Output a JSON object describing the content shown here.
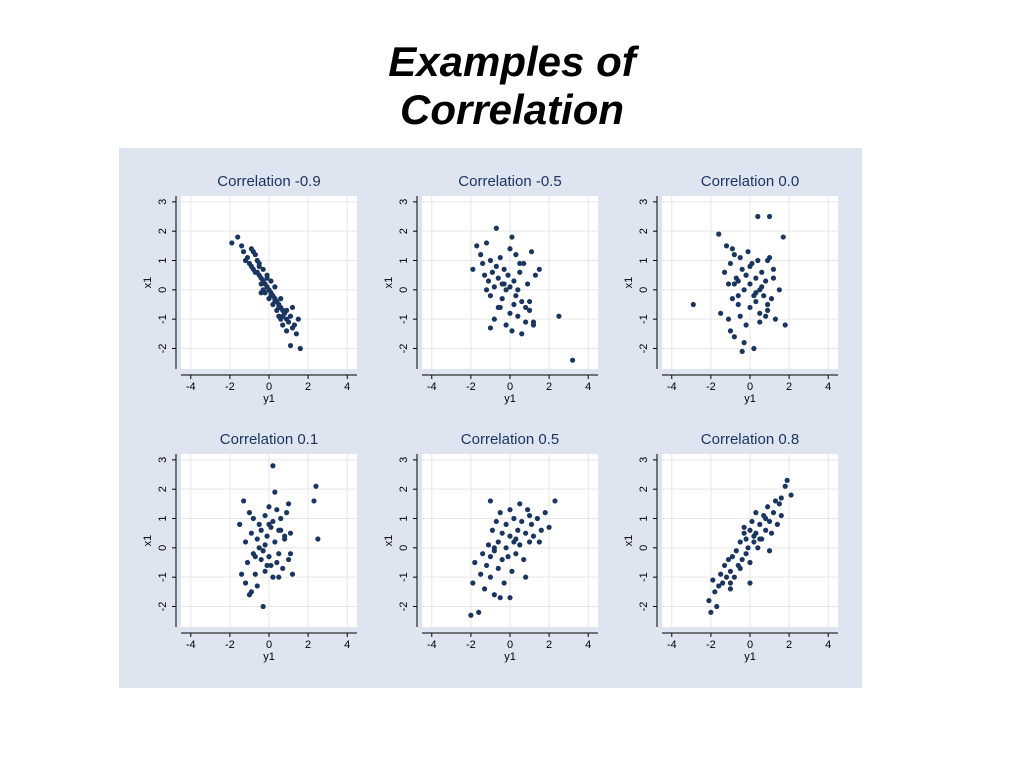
{
  "slide": {
    "title_line1": "Examples of",
    "title_line2": "Correlation"
  },
  "colors": {
    "panel_background": "#dfe5f0",
    "plot_background": "#ffffff",
    "marker": "#1a3560",
    "title_text": "#1a3560",
    "grid": "#e6e6e6"
  },
  "chart_data": [
    {
      "type": "scatter",
      "title": "Correlation -0.9",
      "xlabel": "y1",
      "ylabel": "x1",
      "xlim": [
        -4.5,
        4.5
      ],
      "ylim": [
        -2.7,
        3.2
      ],
      "xticks": [
        "-4",
        "-2",
        "0",
        "2",
        "4"
      ],
      "yticks": [
        "-2",
        "-1",
        "0",
        "1",
        "2",
        "3"
      ],
      "x": [
        -1.9,
        -1.6,
        -1.4,
        -1.3,
        -1.1,
        -1.0,
        -0.9,
        -0.8,
        -0.8,
        -0.7,
        -0.6,
        -0.6,
        -0.5,
        -0.5,
        -0.4,
        -0.4,
        -0.3,
        -0.3,
        -0.2,
        -0.2,
        -0.1,
        -0.1,
        0.0,
        0.0,
        0.1,
        0.1,
        0.2,
        0.2,
        0.3,
        0.3,
        0.4,
        0.4,
        0.5,
        0.5,
        0.6,
        0.6,
        0.7,
        0.7,
        0.8,
        0.9,
        1.0,
        1.1,
        1.2,
        1.3,
        1.4,
        -0.9,
        -0.7,
        -0.5,
        -0.3,
        -0.1,
        0.1,
        0.3,
        0.5,
        0.7,
        0.9,
        1.1,
        -1.2,
        -0.4,
        0.6,
        0.9,
        1.2,
        1.5,
        1.6
      ],
      "y": [
        1.6,
        1.8,
        1.5,
        1.3,
        1.1,
        0.9,
        0.8,
        0.7,
        1.3,
        0.6,
        0.6,
        1.0,
        0.5,
        0.9,
        0.4,
        0.2,
        0.3,
        0.0,
        0.2,
        -0.1,
        0.1,
        0.4,
        0.0,
        -0.3,
        -0.1,
        0.3,
        -0.2,
        -0.5,
        -0.3,
        0.1,
        -0.4,
        -0.7,
        -0.5,
        -0.9,
        -0.6,
        -1.0,
        -0.7,
        -1.2,
        -0.8,
        -1.0,
        -1.1,
        -0.9,
        -1.3,
        -1.2,
        -1.5,
        1.4,
        1.2,
        0.8,
        0.7,
        0.5,
        -0.2,
        -0.4,
        -0.6,
        -0.9,
        -1.4,
        -1.9,
        1.0,
        -0.1,
        -0.3,
        -0.7,
        -0.6,
        -1.0,
        -2.0
      ]
    },
    {
      "type": "scatter",
      "title": "Correlation -0.5",
      "xlabel": "y1",
      "ylabel": "x1",
      "xlim": [
        -4.5,
        4.5
      ],
      "ylim": [
        -2.7,
        3.2
      ],
      "xticks": [
        "-4",
        "-2",
        "0",
        "2",
        "4"
      ],
      "yticks": [
        "-2",
        "-1",
        "0",
        "1",
        "2",
        "3"
      ],
      "x": [
        -1.9,
        -1.7,
        -1.5,
        -1.4,
        -1.3,
        -1.2,
        -1.1,
        -1.0,
        -1.0,
        -0.9,
        -0.8,
        -0.8,
        -0.7,
        -0.6,
        -0.6,
        -0.5,
        -0.4,
        -0.4,
        -0.3,
        -0.2,
        -0.2,
        -0.1,
        0.0,
        0.0,
        0.1,
        0.2,
        0.2,
        0.3,
        0.4,
        0.4,
        0.5,
        0.6,
        0.7,
        0.8,
        0.9,
        1.0,
        1.1,
        1.2,
        1.3,
        1.5,
        -1.0,
        -0.5,
        0.1,
        0.6,
        1.0,
        -0.3,
        0.3,
        0.8,
        2.5,
        3.2,
        -0.7,
        0.5,
        1.2,
        -1.2,
        0.0
      ],
      "y": [
        0.7,
        1.5,
        1.2,
        0.9,
        0.5,
        1.6,
        0.3,
        -0.2,
        1.0,
        0.6,
        0.1,
        -1.0,
        0.8,
        0.4,
        -0.6,
        1.1,
        0.2,
        -0.3,
        0.7,
        0.0,
        -1.2,
        0.5,
        0.1,
        -0.8,
        1.8,
        0.3,
        -0.5,
        1.2,
        0.0,
        -0.9,
        0.6,
        -0.4,
        0.9,
        -1.1,
        0.2,
        -0.7,
        1.3,
        -1.2,
        0.5,
        0.7,
        -1.3,
        -0.6,
        -1.4,
        -1.5,
        -0.4,
        0.2,
        -0.2,
        -0.6,
        -0.9,
        -2.4,
        2.1,
        0.9,
        -1.1,
        0.0,
        1.4
      ]
    },
    {
      "type": "scatter",
      "title": "Correlation 0.0",
      "xlabel": "y1",
      "ylabel": "x1",
      "xlim": [
        -4.5,
        4.5
      ],
      "ylim": [
        -2.7,
        3.2
      ],
      "xticks": [
        "-4",
        "-2",
        "0",
        "2",
        "4"
      ],
      "yticks": [
        "-2",
        "-1",
        "0",
        "1",
        "2",
        "3"
      ],
      "x": [
        -2.9,
        -1.6,
        -1.5,
        -1.3,
        -1.2,
        -1.1,
        -1.0,
        -1.0,
        -0.9,
        -0.8,
        -0.8,
        -0.7,
        -0.6,
        -0.5,
        -0.5,
        -0.4,
        -0.3,
        -0.2,
        -0.2,
        -0.1,
        0.0,
        0.0,
        0.1,
        0.2,
        0.3,
        0.3,
        0.4,
        0.5,
        0.5,
        0.6,
        0.7,
        0.8,
        0.9,
        1.0,
        1.1,
        1.2,
        1.3,
        1.5,
        1.8,
        -0.9,
        -0.6,
        -0.3,
        0.0,
        0.2,
        0.6,
        0.9,
        1.2,
        -1.1,
        -0.4,
        0.4,
        1.0,
        -0.8,
        0.5,
        0.9,
        1.7,
        -0.2,
        0.3,
        -0.6,
        0.8
      ],
      "y": [
        -0.5,
        1.9,
        -0.8,
        0.6,
        1.5,
        0.2,
        -1.4,
        0.9,
        -0.3,
        1.2,
        -1.6,
        0.4,
        -0.2,
        1.1,
        -0.9,
        0.7,
        0.0,
        -1.2,
        0.5,
        1.3,
        -0.6,
        0.2,
        0.9,
        -2.0,
        0.4,
        -0.4,
        1.0,
        0.0,
        -1.1,
        0.6,
        -0.2,
        0.3,
        -0.7,
        1.1,
        -0.3,
        0.4,
        -1.0,
        0.0,
        -1.2,
        1.4,
        -0.5,
        -1.8,
        0.8,
        -0.2,
        0.1,
        -0.5,
        0.7,
        -1.0,
        -2.1,
        2.5,
        2.5,
        0.2,
        -0.8,
        1.0,
        1.8,
        0.5,
        -0.1,
        0.3,
        -0.9
      ]
    },
    {
      "type": "scatter",
      "title": "Correlation 0.1",
      "xlabel": "y1",
      "ylabel": "x1",
      "xlim": [
        -4.5,
        4.5
      ],
      "ylim": [
        -2.7,
        3.2
      ],
      "xticks": [
        "-4",
        "-2",
        "0",
        "2",
        "4"
      ],
      "yticks": [
        "-2",
        "-1",
        "0",
        "1",
        "2",
        "3"
      ],
      "x": [
        -1.5,
        -1.4,
        -1.3,
        -1.2,
        -1.1,
        -1.0,
        -1.0,
        -0.9,
        -0.8,
        -0.8,
        -0.7,
        -0.6,
        -0.6,
        -0.5,
        -0.4,
        -0.4,
        -0.3,
        -0.2,
        -0.2,
        -0.1,
        0.0,
        0.0,
        0.1,
        0.1,
        0.2,
        0.3,
        0.3,
        0.4,
        0.5,
        0.5,
        0.6,
        0.7,
        0.8,
        0.9,
        1.0,
        1.1,
        1.2,
        -0.9,
        -0.5,
        -0.1,
        0.2,
        0.5,
        0.8,
        1.1,
        -1.2,
        -0.3,
        0.4,
        2.3,
        2.4,
        2.5,
        0.2,
        -0.2,
        0.0,
        -0.7,
        0.6,
        1.0
      ],
      "y": [
        0.8,
        -0.9,
        1.6,
        0.2,
        -0.5,
        1.2,
        -1.6,
        0.5,
        -0.2,
        1.0,
        -0.9,
        0.3,
        -1.3,
        0.8,
        -0.4,
        0.6,
        -0.1,
        1.1,
        -0.8,
        0.4,
        -0.3,
        1.4,
        -0.6,
        0.7,
        -1.0,
        0.2,
        1.9,
        -0.5,
        0.6,
        -0.2,
        1.0,
        -0.7,
        0.3,
        1.2,
        -0.4,
        0.5,
        -0.9,
        -1.5,
        0.0,
        -0.6,
        0.9,
        -1.0,
        0.4,
        -0.2,
        -1.2,
        -2.0,
        1.3,
        1.6,
        2.1,
        0.3,
        2.8,
        0.1,
        0.8,
        -0.3,
        0.6,
        1.5
      ]
    },
    {
      "type": "scatter",
      "title": "Correlation 0.5",
      "xlabel": "y1",
      "ylabel": "x1",
      "xlim": [
        -4.5,
        4.5
      ],
      "ylim": [
        -2.7,
        3.2
      ],
      "xticks": [
        "-4",
        "-2",
        "0",
        "2",
        "4"
      ],
      "yticks": [
        "-2",
        "-1",
        "0",
        "1",
        "2",
        "3"
      ],
      "x": [
        -2.0,
        -1.9,
        -1.8,
        -1.6,
        -1.5,
        -1.4,
        -1.3,
        -1.2,
        -1.1,
        -1.0,
        -1.0,
        -0.9,
        -0.8,
        -0.8,
        -0.7,
        -0.6,
        -0.6,
        -0.5,
        -0.4,
        -0.4,
        -0.3,
        -0.2,
        -0.2,
        -0.1,
        0.0,
        0.0,
        0.1,
        0.2,
        0.2,
        0.3,
        0.4,
        0.5,
        0.6,
        0.7,
        0.8,
        0.9,
        1.0,
        1.1,
        1.2,
        1.4,
        1.6,
        1.8,
        2.0,
        2.3,
        -1.0,
        -0.5,
        0.0,
        0.5,
        1.0,
        -0.8,
        0.3,
        0.8,
        1.5
      ],
      "y": [
        -2.3,
        -1.2,
        -0.5,
        -2.2,
        -0.9,
        -0.2,
        -1.4,
        -0.6,
        0.1,
        -1.0,
        -0.3,
        0.6,
        -1.6,
        -0.1,
        0.9,
        -0.7,
        0.2,
        1.2,
        -0.4,
        0.5,
        -1.2,
        0.0,
        0.8,
        -0.3,
        0.4,
        1.3,
        -0.8,
        0.2,
        1.0,
        -0.2,
        0.6,
        0.1,
        0.9,
        -0.4,
        0.5,
        1.3,
        0.2,
        0.8,
        0.4,
        1.0,
        0.6,
        1.2,
        0.7,
        1.6,
        1.6,
        -1.7,
        -1.7,
        1.5,
        1.1,
        0.0,
        0.3,
        -1.0,
        0.2
      ]
    },
    {
      "type": "scatter",
      "title": "Correlation 0.8",
      "xlabel": "y1",
      "ylabel": "x1",
      "xlim": [
        -4.5,
        4.5
      ],
      "ylim": [
        -2.7,
        3.2
      ],
      "xticks": [
        "-4",
        "-2",
        "0",
        "2",
        "4"
      ],
      "yticks": [
        "-2",
        "-1",
        "0",
        "1",
        "2",
        "3"
      ],
      "x": [
        -2.1,
        -2.0,
        -1.9,
        -1.8,
        -1.7,
        -1.6,
        -1.5,
        -1.4,
        -1.3,
        -1.2,
        -1.1,
        -1.0,
        -1.0,
        -0.9,
        -0.8,
        -0.7,
        -0.6,
        -0.5,
        -0.4,
        -0.3,
        -0.2,
        -0.2,
        -0.1,
        0.0,
        0.0,
        0.1,
        0.2,
        0.3,
        0.3,
        0.4,
        0.5,
        0.6,
        0.7,
        0.8,
        0.9,
        1.0,
        1.1,
        1.2,
        1.3,
        1.4,
        1.5,
        1.6,
        1.8,
        1.9,
        2.1,
        -1.0,
        -0.5,
        0.0,
        0.5,
        1.0,
        1.6,
        -0.3,
        0.2,
        0.8
      ],
      "y": [
        -1.8,
        -2.2,
        -1.1,
        -1.5,
        -2.0,
        -1.3,
        -0.9,
        -1.2,
        -0.6,
        -1.0,
        -0.4,
        -0.8,
        -1.4,
        -0.3,
        -1.0,
        -0.1,
        -0.6,
        0.2,
        -0.4,
        0.5,
        -0.2,
        0.3,
        0.0,
        0.6,
        -0.5,
        0.9,
        0.2,
        0.5,
        1.2,
        0.0,
        0.8,
        0.3,
        1.1,
        0.6,
        1.4,
        0.9,
        0.5,
        1.2,
        1.6,
        0.8,
        1.5,
        1.1,
        2.1,
        2.3,
        1.8,
        -1.2,
        -0.7,
        -1.2,
        0.3,
        -0.1,
        1.7,
        0.7,
        0.4,
        1.0
      ]
    }
  ]
}
